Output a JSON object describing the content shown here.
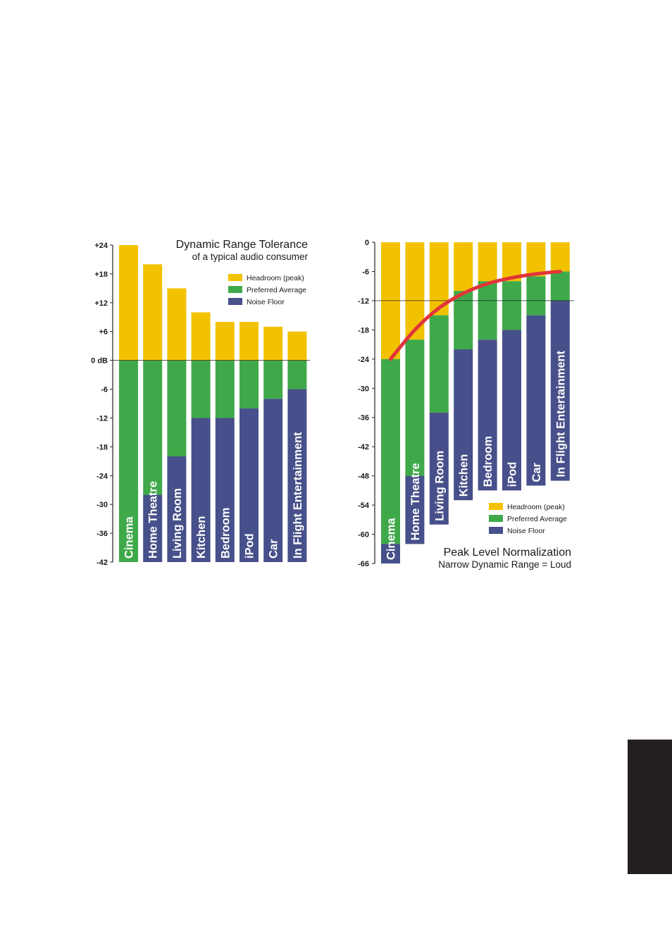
{
  "chart_data": [
    {
      "type": "bar",
      "stacked": true,
      "title": "Dynamic Range Tolerance",
      "subtitle": "of a typical audio consumer",
      "ylim": [
        -42,
        24
      ],
      "yticks": [
        "+24",
        "+18",
        "+12",
        "+6",
        "0 dB",
        "-6",
        "-12",
        "-18",
        "-24",
        "-30",
        "-36",
        "-42"
      ],
      "ytick_values": [
        24,
        18,
        12,
        6,
        0,
        -6,
        -12,
        -18,
        -24,
        -30,
        -36,
        -42
      ],
      "reference_line": 0,
      "categories": [
        "Cinema",
        "Home Theatre",
        "Living Room",
        "Kitchen",
        "Bedroom",
        "iPod",
        "Car",
        "In Flight Entertainment"
      ],
      "series": [
        {
          "name": "Headroom (peak)",
          "color": "#f2c200",
          "from": [
            0,
            0,
            0,
            0,
            0,
            0,
            0,
            0
          ],
          "to": [
            24,
            20,
            15,
            10,
            8,
            8,
            7,
            6
          ]
        },
        {
          "name": "Preferred Average",
          "color": "#3fa94a",
          "from": [
            -42,
            -28,
            -20,
            -12,
            -12,
            -10,
            -8,
            -6
          ],
          "to": [
            0,
            0,
            0,
            0,
            0,
            0,
            0,
            0
          ]
        },
        {
          "name": "Noise Floor",
          "color": "#47508a",
          "from": [
            -42,
            -42,
            -42,
            -42,
            -42,
            -42,
            -42,
            -42
          ],
          "to": [
            -42,
            -28,
            -20,
            -12,
            -12,
            -10,
            -8,
            -6
          ]
        }
      ],
      "legend": {
        "position": "top-right",
        "items": [
          "Headroom (peak)",
          "Preferred Average",
          "Noise Floor"
        ]
      }
    },
    {
      "type": "bar",
      "stacked": true,
      "title": "Peak Level Normalization",
      "subtitle": "Narrow Dynamic Range = Loud",
      "ylim": [
        -66,
        0
      ],
      "yticks": [
        "0",
        "-6",
        "-12",
        "-18",
        "-24",
        "-30",
        "-36",
        "-42",
        "-48",
        "-54",
        "-60",
        "-66"
      ],
      "ytick_values": [
        0,
        -6,
        -12,
        -18,
        -24,
        -30,
        -36,
        -42,
        -48,
        -54,
        -60,
        -66
      ],
      "reference_line": -12,
      "categories": [
        "Cinema",
        "Home Theatre",
        "Living Room",
        "Kitchen",
        "Bedroom",
        "iPod",
        "Car",
        "In Flight Entertainment"
      ],
      "series": [
        {
          "name": "Headroom (peak)",
          "color": "#f2c200",
          "from": [
            -24,
            -20,
            -15,
            -10,
            -8,
            -8,
            -7,
            -6
          ],
          "to": [
            0,
            0,
            0,
            0,
            0,
            0,
            0,
            0
          ]
        },
        {
          "name": "Preferred Average",
          "color": "#3fa94a",
          "from": [
            -62,
            -48,
            -35,
            -22,
            -20,
            -18,
            -15,
            -12
          ],
          "to": [
            -24,
            -20,
            -15,
            -10,
            -8,
            -8,
            -7,
            -6
          ]
        },
        {
          "name": "Noise Floor",
          "color": "#47508a",
          "from": [
            -66,
            -62,
            -58,
            -53,
            -51,
            -51,
            -50,
            -49
          ],
          "to": [
            -62,
            -48,
            -35,
            -22,
            -20,
            -18,
            -15,
            -12
          ]
        }
      ],
      "curve": {
        "color": "#e0353a",
        "points": [
          [
            0,
            -24
          ],
          [
            1,
            -18
          ],
          [
            2,
            -13.5
          ],
          [
            3,
            -10.5
          ],
          [
            4,
            -8.5
          ],
          [
            5,
            -7.3
          ],
          [
            6,
            -6.5
          ],
          [
            7,
            -6
          ]
        ]
      },
      "legend": {
        "position": "bottom-right",
        "items": [
          "Headroom (peak)",
          "Preferred Average",
          "Noise Floor"
        ]
      }
    }
  ]
}
